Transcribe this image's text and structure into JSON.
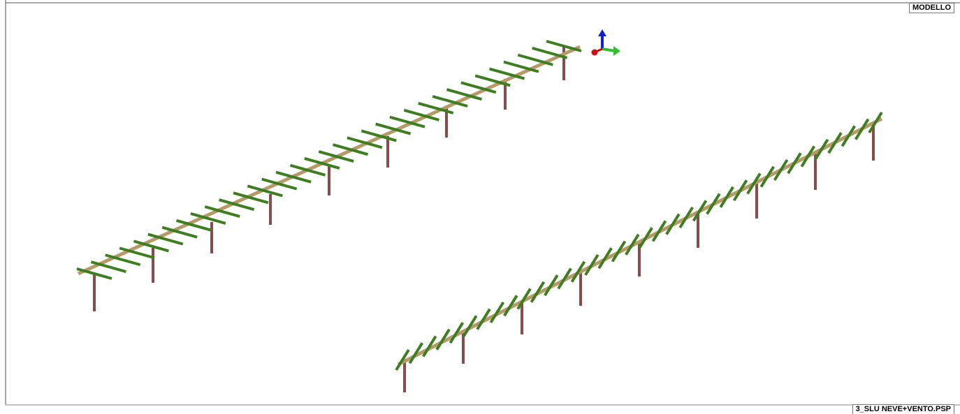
{
  "header": {
    "view_label": "MODELLO"
  },
  "footer": {
    "file_label": "3_SLU NEVE+VENTO.PSP"
  }
}
